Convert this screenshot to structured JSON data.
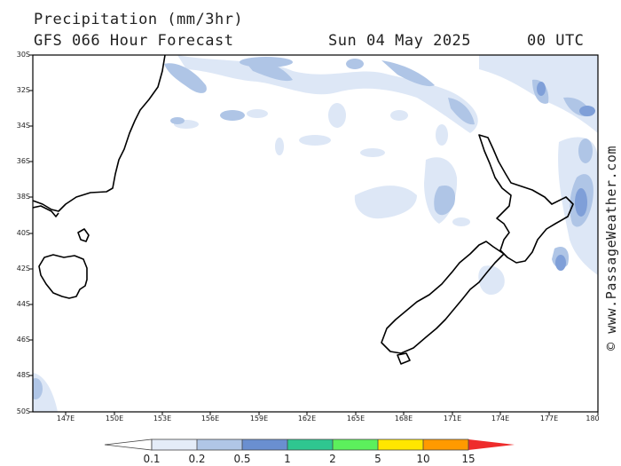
{
  "header": {
    "title": "Precipitation (mm/3hr)",
    "subtitle": "GFS 066 Hour Forecast",
    "date": "Sun 04 May 2025",
    "time": "00 UTC"
  },
  "credit": "© www.PassageWeather.com",
  "map": {
    "lat_labels": [
      "30S",
      "32S",
      "34S",
      "36S",
      "38S",
      "40S",
      "42S",
      "44S",
      "46S",
      "48S",
      "50S"
    ],
    "lon_labels": [
      "147E",
      "150E",
      "153E",
      "156E",
      "159E",
      "162E",
      "165E",
      "168E",
      "171E",
      "174E",
      "177E",
      "180"
    ]
  },
  "legend": {
    "labels": [
      "0.1",
      "0.2",
      "0.5",
      "1",
      "2",
      "5",
      "10",
      "15"
    ],
    "colors": [
      "#e4ecf8",
      "#b0c6e6",
      "#6a8fd0",
      "#2fc690",
      "#5cf05c",
      "#ffe600",
      "#ff9a00",
      "#ee2c2c"
    ]
  }
}
